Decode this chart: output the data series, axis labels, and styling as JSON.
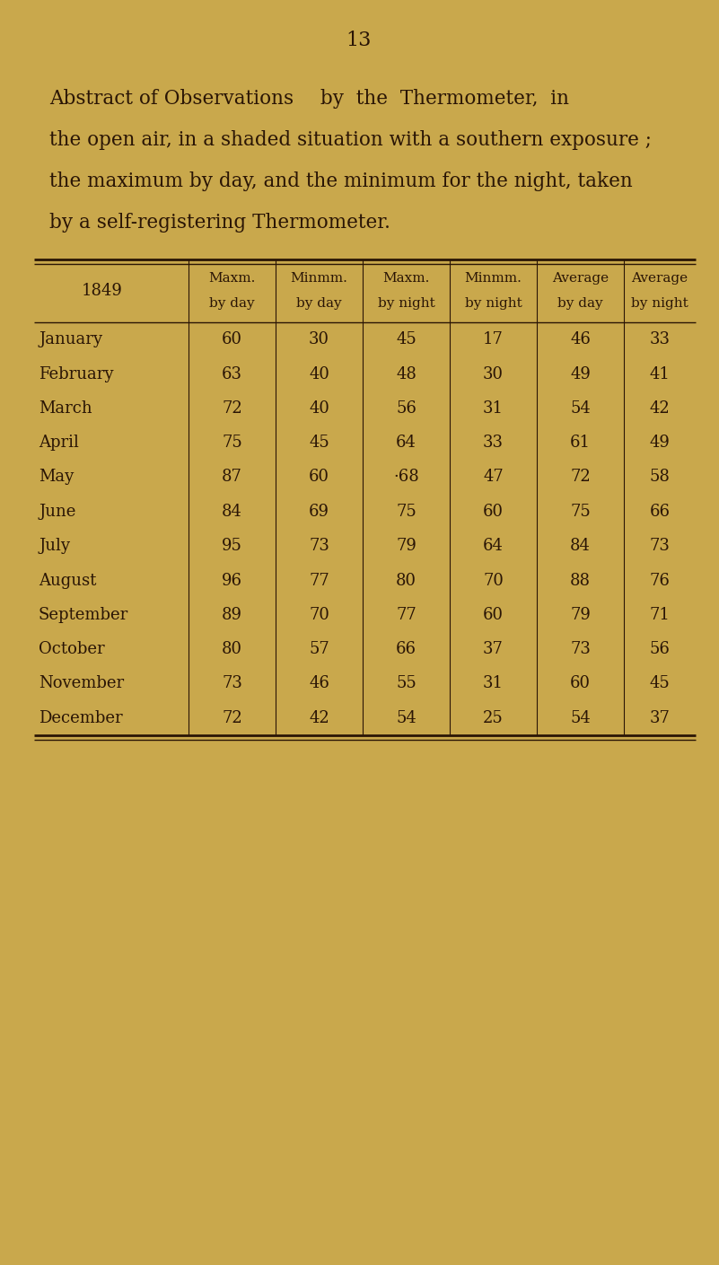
{
  "page_number": "13",
  "background_color": "#c9a84c",
  "text_color": "#2a1505",
  "months": [
    "January",
    "February",
    "March",
    "April",
    "May",
    "June",
    "July",
    "August",
    "September",
    "October",
    "November",
    "December"
  ],
  "data": [
    [
      "60",
      "30",
      "45",
      "17",
      "46",
      "33"
    ],
    [
      "63",
      "40",
      "48",
      "30",
      "49",
      "41"
    ],
    [
      "72",
      "40",
      "56",
      "31",
      "54",
      "42"
    ],
    [
      "75",
      "45",
      "64",
      "33",
      "61",
      "49"
    ],
    [
      "87",
      "60",
      "·68",
      "47",
      "72",
      "58"
    ],
    [
      "84",
      "69",
      "75",
      "60",
      "75",
      "66"
    ],
    [
      "95",
      "73",
      "79",
      "64",
      "84",
      "73"
    ],
    [
      "96",
      "77",
      "80",
      "70",
      "88",
      "76"
    ],
    [
      "89",
      "70",
      "77",
      "60",
      "79",
      "71"
    ],
    [
      "80",
      "57",
      "66",
      "37",
      "73",
      "56"
    ],
    [
      "73",
      "46",
      "55",
      "31",
      "60",
      "45"
    ],
    [
      "72",
      "42",
      "54",
      "25",
      "54",
      "37"
    ]
  ],
  "header_col1": [
    "Maxm.",
    "by day"
  ],
  "header_col2": [
    "Minmm.",
    "by day"
  ],
  "header_col3": [
    "Maxm.",
    "by night"
  ],
  "header_col4": [
    "Minmm.",
    "by night"
  ],
  "header_col5": [
    "Average",
    "by day"
  ],
  "header_col6": [
    "Average",
    "by night"
  ],
  "year_label": "1849",
  "title_sc": "Abstract of Observations",
  "title_rest1": " by  the  Thermometer,  in",
  "title_line2": "the open air, in a shaded situation with a southern exposure ;",
  "title_line3": "the maximum by day, and the minimum for the night, taken",
  "title_line4": "by a self-registering Thermometer.",
  "page_num_fontsize": 16,
  "title_fontsize": 15.5,
  "header_fontsize": 11,
  "data_fontsize": 13,
  "year_fontsize": 13
}
